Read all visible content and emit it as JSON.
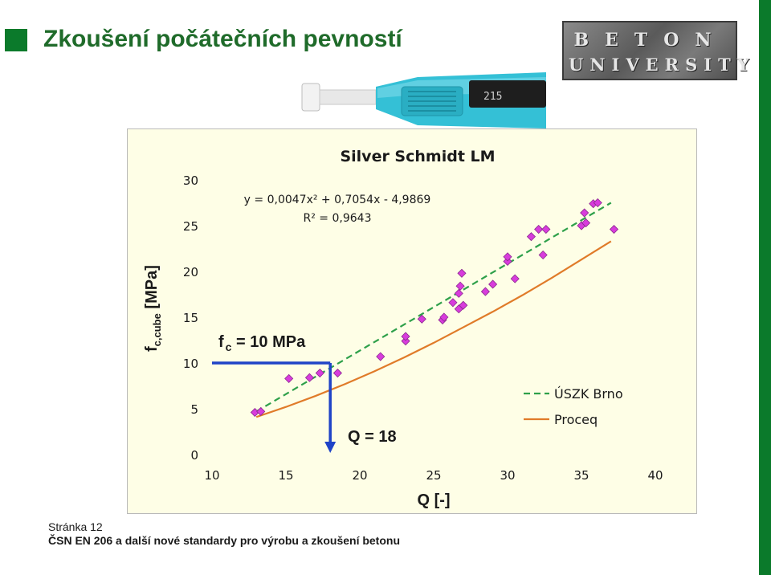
{
  "page": {
    "title": "Zkoušení počátečních pevností",
    "logo_line1": "BETON",
    "logo_line2": "UNIVERSITY",
    "device_readout": "215",
    "footer_page": "Stránka 12",
    "footer_text": "ČSN EN 206 a další nové standardy pro výrobu a zkoušení betonu",
    "accent_color": "#0b7a2b"
  },
  "chart_data": {
    "type": "scatter",
    "title": "Silver Schmidt LM",
    "xlabel": "Q [-]",
    "ylabel": "f c,cube [MPa]",
    "ylabel_main": "f",
    "ylabel_sub": "c,cube",
    "ylabel_unit": "[MPa]",
    "xlim": [
      10,
      40
    ],
    "ylim": [
      0,
      30
    ],
    "xticks": [
      10,
      15,
      20,
      25,
      30,
      35,
      40
    ],
    "yticks": [
      0,
      5,
      10,
      15,
      20,
      25,
      30
    ],
    "grid": false,
    "legend_position": "right",
    "equation": "y = 0,0047x² + 0,7054x - 4,9869",
    "r_squared": "R² = 0,9643",
    "series": [
      {
        "name": "ÚSZK Brno",
        "style": "dashed",
        "color": "#2ea04a",
        "x": [
          13,
          37
        ],
        "y": [
          4.7,
          27.5
        ]
      },
      {
        "name": "Proceq",
        "style": "line",
        "color": "#e07b29",
        "x": [
          13,
          15,
          17,
          19,
          21,
          23,
          25,
          27,
          29,
          31,
          33,
          35,
          37
        ],
        "y": [
          4.1,
          5.2,
          6.4,
          7.7,
          9.1,
          10.6,
          12.2,
          13.9,
          15.6,
          17.4,
          19.3,
          21.3,
          23.3
        ]
      },
      {
        "name": "",
        "style": "markers",
        "color": "#d83cdc",
        "x": [
          12.9,
          13.3,
          15.2,
          16.6,
          17.3,
          18.5,
          21.4,
          23.1,
          23.1,
          24.2,
          25.6,
          25.7,
          26.3,
          26.7,
          26.7,
          26.8,
          26.9,
          27.0,
          28.5,
          29.0,
          30.0,
          30.0,
          30.5,
          31.6,
          32.1,
          32.4,
          32.6,
          35.0,
          35.2,
          35.3,
          35.8,
          36.1,
          37.2
        ],
        "y": [
          4.6,
          4.7,
          8.3,
          8.4,
          8.9,
          8.9,
          10.7,
          12.4,
          12.9,
          14.8,
          14.7,
          15.0,
          16.6,
          15.9,
          17.6,
          18.4,
          19.8,
          16.3,
          17.8,
          18.6,
          21.1,
          21.6,
          19.2,
          23.8,
          24.6,
          21.8,
          24.6,
          25.0,
          26.4,
          25.3,
          27.4,
          27.5,
          24.6
        ]
      }
    ],
    "annotations": [
      {
        "text": "f",
        "sub": "c",
        "rest": " = 10 MPa",
        "y_value": 10
      },
      {
        "text": "Q = 18",
        "x_value": 18
      }
    ]
  }
}
